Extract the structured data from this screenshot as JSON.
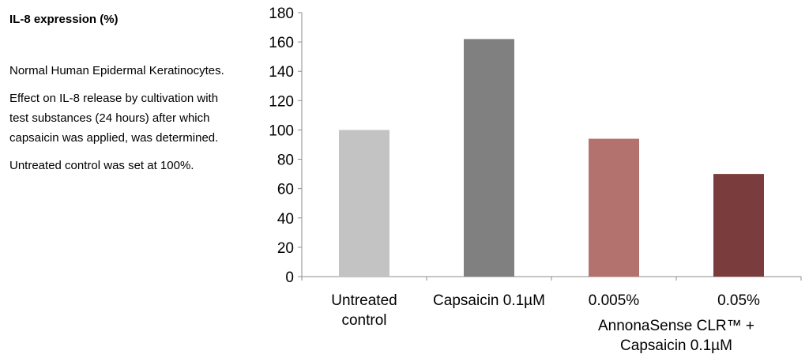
{
  "panel": {
    "title": "IL-8 expression (%)",
    "paragraphs": [
      "Normal Human Epidermal Keratinocytes.",
      "Effect on IL-8 release by cultivation with test substances (24 hours) after which capsaicin was applied, was determined.",
      "Untreated control was set at 100%."
    ]
  },
  "chart_data": {
    "type": "bar",
    "title": "",
    "xlabel": "",
    "ylabel": "",
    "ylim": [
      0,
      180
    ],
    "y_ticks": [
      0,
      20,
      40,
      60,
      80,
      100,
      120,
      140,
      160,
      180
    ],
    "categories": [
      "Untreated control",
      "Capsaicin 0.1µM",
      "0.005%",
      "0.05%"
    ],
    "category_labels": [
      [
        "Untreated",
        "control"
      ],
      [
        "Capsaicin 0.1µM"
      ],
      [
        "0.005%"
      ],
      [
        "0.05%"
      ]
    ],
    "group_label": [
      "AnnonaSense CLR™ +",
      "Capsaicin 0.1µM"
    ],
    "values": [
      100,
      162,
      94,
      70
    ],
    "colors": [
      "#c3c3c3",
      "#808080",
      "#b4726f",
      "#7a3c3c"
    ],
    "grid": false,
    "legend": "none"
  }
}
